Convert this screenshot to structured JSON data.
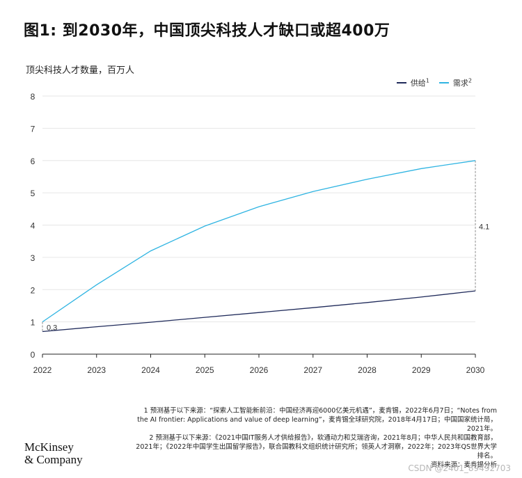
{
  "title": "图1: 到2030年，中国顶尖科技人才缺口或超400万",
  "chart_data": {
    "type": "line",
    "ylabel": "顶尖科技人才数量，百万人",
    "x": [
      2022,
      2023,
      2024,
      2025,
      2026,
      2027,
      2028,
      2029,
      2030
    ],
    "ylim": [
      0,
      8
    ],
    "yticks": [
      0,
      1,
      2,
      3,
      4,
      5,
      6,
      7,
      8
    ],
    "grid": "horizontal",
    "legend_position": "top-right",
    "series": [
      {
        "name": "供给",
        "sup": "1",
        "color": "#1f2a5a",
        "values": [
          0.7,
          0.85,
          0.99,
          1.14,
          1.29,
          1.44,
          1.6,
          1.77,
          1.96
        ]
      },
      {
        "name": "需求",
        "sup": "2",
        "color": "#2fb4e2",
        "values": [
          1.0,
          2.15,
          3.2,
          3.97,
          4.57,
          5.04,
          5.42,
          5.75,
          6.0
        ]
      }
    ],
    "annotations": [
      {
        "label": "0.3",
        "x": 2022
      },
      {
        "label": "4.1",
        "x": 2030
      }
    ]
  },
  "footnotes": [
    "1 预测基于以下来源：“探索人工智能新前沿：中国经济再迎6000亿美元机遇”，麦肯锡，2022年6月7日；“Notes from the AI frontier: Applications and value of deep learning”，麦肯锡全球研究院，2018年4月17日；中国国家统计局，2021年。",
    "2 预测基于以下来源：《2021中国IT服务人才供给报告》，软通动力和艾瑞咨询，2021年8月；中华人民共和国教育部，2021年；《2022年中国学生出国留学报告》，联合国教科文组织统计研究所；领英人才洞察，2022年；2023年QS世界大学排名。",
    "资料来源：麦肯锡分析"
  ],
  "logo": {
    "line1": "McKinsey",
    "line2": "& Company"
  },
  "watermark": "CSDN @2401_89492703"
}
